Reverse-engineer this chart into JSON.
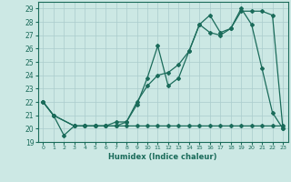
{
  "xlabel": "Humidex (Indice chaleur)",
  "xlim": [
    -0.5,
    23.5
  ],
  "ylim": [
    19,
    29.5
  ],
  "xticks": [
    0,
    1,
    2,
    3,
    4,
    5,
    6,
    7,
    8,
    9,
    10,
    11,
    12,
    13,
    14,
    15,
    16,
    17,
    18,
    19,
    20,
    21,
    22,
    23
  ],
  "yticks": [
    19,
    20,
    21,
    22,
    23,
    24,
    25,
    26,
    27,
    28,
    29
  ],
  "bg_color": "#cce8e4",
  "line_color": "#1a6b5a",
  "grid_color": "#aacccc",
  "line1_x": [
    0,
    1,
    2,
    3,
    4,
    5,
    6,
    7,
    8,
    9,
    10,
    11,
    12,
    13,
    14,
    15,
    16,
    17,
    18,
    19,
    20,
    21,
    22,
    23
  ],
  "line1_y": [
    22,
    21,
    19.5,
    20.2,
    20.2,
    20.2,
    20.2,
    20.2,
    20.2,
    20.2,
    20.2,
    20.2,
    20.2,
    20.2,
    20.2,
    20.2,
    20.2,
    20.2,
    20.2,
    20.2,
    20.2,
    20.2,
    20.2,
    20.2
  ],
  "line2_x": [
    0,
    1,
    3,
    4,
    5,
    6,
    7,
    8,
    9,
    10,
    11,
    12,
    13,
    14,
    15,
    16,
    17,
    18,
    19,
    20,
    21,
    22,
    23
  ],
  "line2_y": [
    22,
    21,
    20.2,
    20.2,
    20.2,
    20.2,
    20.5,
    20.5,
    21.8,
    23.8,
    26.2,
    23.2,
    23.8,
    25.8,
    27.8,
    28.5,
    27.2,
    27.5,
    29.0,
    27.8,
    24.5,
    21.2,
    20.0
  ],
  "line3_x": [
    0,
    1,
    3,
    4,
    5,
    6,
    7,
    8,
    9,
    10,
    11,
    12,
    13,
    14,
    15,
    16,
    17,
    18,
    19,
    20,
    21,
    22,
    23
  ],
  "line3_y": [
    22,
    21,
    20.2,
    20.2,
    20.2,
    20.2,
    20.2,
    20.5,
    22.0,
    23.2,
    24.0,
    24.2,
    24.8,
    25.8,
    27.8,
    27.2,
    27.0,
    27.5,
    28.8,
    28.8,
    28.8,
    28.5,
    20.0
  ]
}
